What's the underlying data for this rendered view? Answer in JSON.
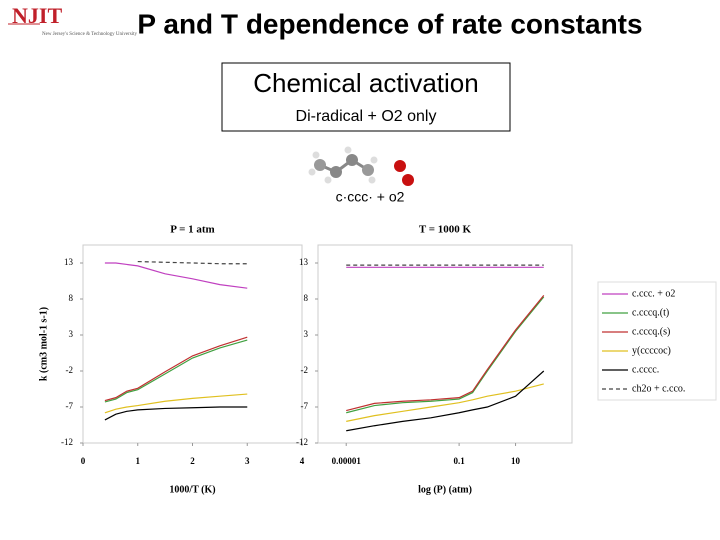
{
  "header": {
    "logo": "NJIT",
    "logo_sub": "New Jersey's Science & Technology University",
    "title": "P and T dependence of rate constants"
  },
  "box": {
    "title": "Chemical activation",
    "subtitle": "Di-radical + O2 only"
  },
  "reaction": "c·ccc·  +  o2",
  "chart_data": [
    {
      "type": "line",
      "title": "P = 1 atm",
      "x_label": "1000/T (K)",
      "y_label": "k (cm3 mol-1 s-1)",
      "x": [
        0.4,
        0.6,
        0.8,
        1,
        1.5,
        2,
        2.5,
        3
      ],
      "xlim": [
        0,
        4
      ],
      "xticks": [
        0,
        1,
        2,
        3,
        4
      ],
      "ylim": [
        -12,
        15.5
      ],
      "yticks": [
        13,
        8,
        3,
        -2,
        -7,
        -12
      ],
      "series": [
        {
          "color": "#c040c0",
          "values": [
            13,
            13,
            12.8,
            12.6,
            11.5,
            10.8,
            10,
            9.5
          ]
        },
        {
          "color": "#40a040",
          "values": [
            -6.3,
            -5.9,
            -5,
            -4.6,
            -2.4,
            -0.2,
            1.2,
            2.3
          ]
        },
        {
          "color": "#c03030",
          "values": [
            -6.1,
            -5.7,
            -4.8,
            -4.4,
            -2.1,
            0.1,
            1.5,
            2.7
          ]
        },
        {
          "color": "#e0c020",
          "values": [
            -7.8,
            -7.3,
            -7,
            -6.8,
            -6.2,
            -5.8,
            -5.5,
            -5.2
          ]
        },
        {
          "color": "#000000",
          "values": [
            -8.8,
            -8,
            -7.6,
            -7.4,
            -7.2,
            -7.1,
            -7,
            -7
          ]
        },
        {
          "color": "#444444",
          "dashed": true,
          "values": [
            null,
            null,
            null,
            13.2,
            13.1,
            13,
            12.9,
            12.9
          ]
        }
      ]
    },
    {
      "type": "line",
      "title": "T = 1000 K",
      "x_label": "log (P) (atm)",
      "xlog": true,
      "x": [
        1e-05,
        0.0001,
        0.001,
        0.01,
        0.1,
        0.3,
        1,
        10,
        100
      ],
      "xlim": [
        1e-06,
        1000
      ],
      "xticks": [
        {
          "value": 1e-05,
          "label": "0.00001"
        },
        0.1,
        10
      ],
      "ylim": [
        -12,
        15.5
      ],
      "yticks": [
        13,
        8,
        3,
        -2,
        -7,
        -12
      ],
      "series": [
        {
          "name": "c.ccc. + o2",
          "color": "#c040c0",
          "values": [
            12.4,
            12.4,
            12.4,
            12.4,
            12.4,
            12.4,
            12.4,
            12.4,
            12.4
          ]
        },
        {
          "name": "c.cccq.(t)",
          "color": "#40a040",
          "values": [
            -7.8,
            -6.8,
            -6.4,
            -6.2,
            -5.9,
            -5,
            -2,
            3.5,
            8.3
          ]
        },
        {
          "name": "c.cccq.(s)",
          "color": "#c03030",
          "values": [
            -7.5,
            -6.5,
            -6.2,
            -6,
            -5.7,
            -4.8,
            -1.8,
            3.7,
            8.5
          ]
        },
        {
          "name": "y(ccccoc)",
          "color": "#e0c020",
          "values": [
            -9,
            -8.2,
            -7.6,
            -7,
            -6.4,
            -6,
            -5.5,
            -4.8,
            -3.8
          ]
        },
        {
          "name": "c.cccc.",
          "color": "#000000",
          "values": [
            -10.3,
            -9.6,
            -9,
            -8.5,
            -7.8,
            -7.4,
            -7,
            -5.5,
            -2
          ]
        },
        {
          "name": "ch2o + c.cco.",
          "color": "#444444",
          "dashed": true,
          "values": [
            12.7,
            12.7,
            12.7,
            12.7,
            12.7,
            12.7,
            12.7,
            12.7,
            12.7
          ]
        }
      ]
    }
  ]
}
